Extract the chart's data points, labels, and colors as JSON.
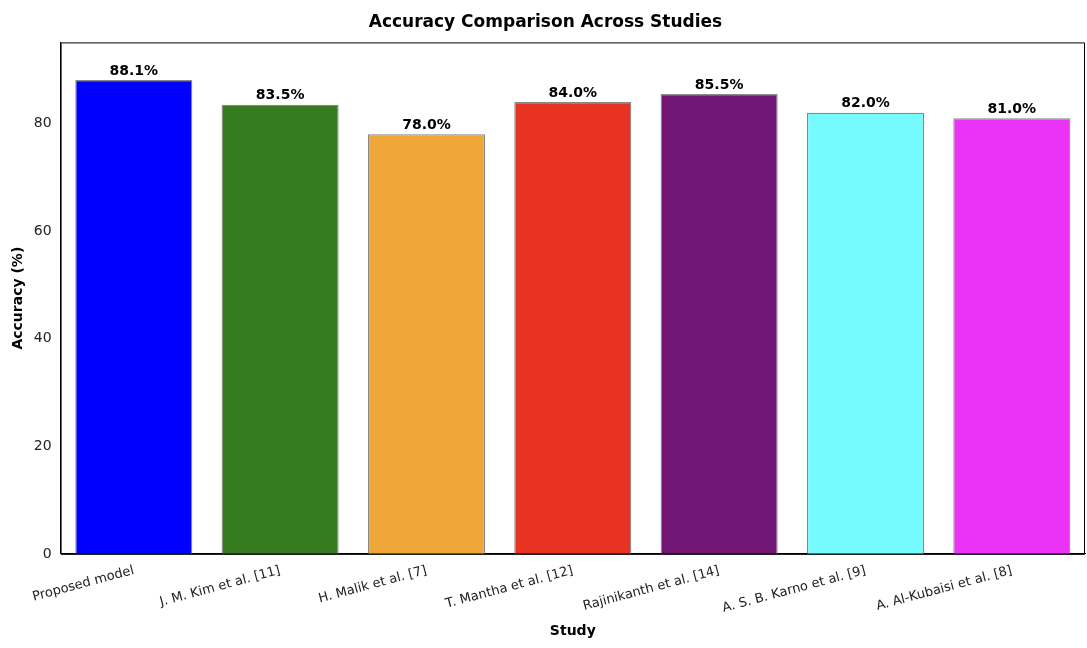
{
  "chart_data": {
    "type": "bar",
    "title": "Accuracy Comparison Across Studies",
    "xlabel": "Study",
    "ylabel": "Accuracy (%)",
    "categories": [
      "Proposed model",
      "J. M. Kim et al. [11]",
      "H. Malik et al. [7]",
      "T. Mantha et al. [12]",
      "Rajinikanth et al. [14]",
      "A. S. B. Karno et al. [9]",
      "A. Al-Kubaisi et al. [8]"
    ],
    "values": [
      88.1,
      83.5,
      78.0,
      84.0,
      85.5,
      82.0,
      81.0
    ],
    "colors": [
      "#0000ff",
      "#367b20",
      "#f0a73a",
      "#e83323",
      "#721675",
      "#75fbfd",
      "#ea33f7"
    ],
    "value_labels": [
      "88.1%",
      "83.5%",
      "78.0%",
      "84.0%",
      "85.5%",
      "82.0%",
      "81.0%"
    ],
    "ylim": [
      0,
      95.1
    ],
    "yticks": [
      0,
      20,
      40,
      60,
      80
    ],
    "grid": false,
    "legend": false
  }
}
